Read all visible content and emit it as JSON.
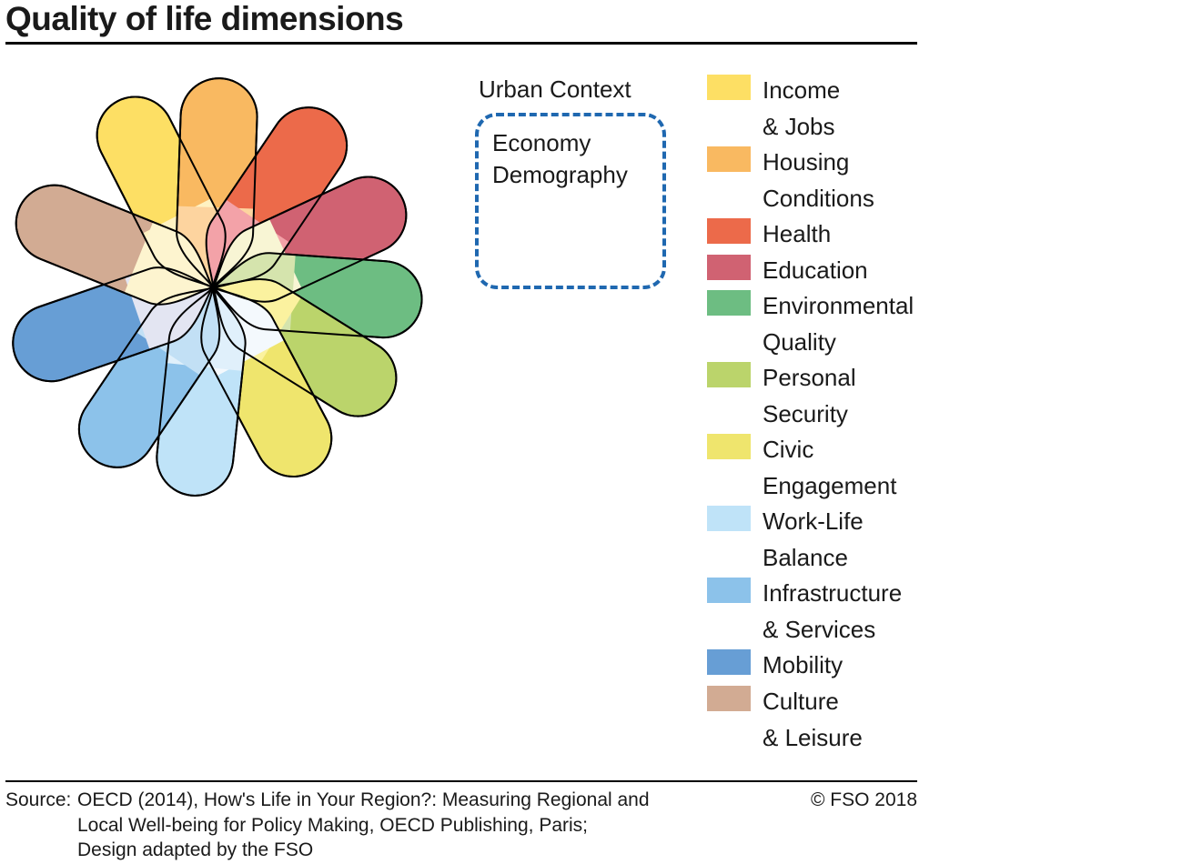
{
  "title": "Quality of life dimensions",
  "urban_context": {
    "label": "Urban Context",
    "items": [
      "Economy",
      "Demography"
    ],
    "border_color": "#1f68b0"
  },
  "dimensions": [
    {
      "name": "Income\n& Jobs",
      "color": "#fddf64"
    },
    {
      "name": "Housing\nConditions",
      "color": "#f9b961"
    },
    {
      "name": "Health",
      "color": "#ec6a4a"
    },
    {
      "name": "Education",
      "color": "#d06272"
    },
    {
      "name": "Environmental\nQuality",
      "color": "#6dbd82"
    },
    {
      "name": "Personal\nSecurity",
      "color": "#bbd46b"
    },
    {
      "name": "Civic\nEngagement",
      "color": "#efe56d"
    },
    {
      "name": "Work-Life\nBalance",
      "color": "#bfe3f8"
    },
    {
      "name": "Infrastructure\n& Services",
      "color": "#8cc2ea"
    },
    {
      "name": "Mobility",
      "color": "#679ed5"
    },
    {
      "name": "Culture\n& Leisure",
      "color": "#d2ab93"
    }
  ],
  "petal_inner_colors": [
    "#fff2c2",
    "#fdd49f",
    "#f3a2a8",
    "#f8f5d4",
    "#d5e4ad",
    "#fbf29f",
    "#f4f9fd",
    "#e0f0fb",
    "#c2e0f5",
    "#e3e5f2",
    "#fdf4cf"
  ],
  "footer": {
    "source_label": "Source:",
    "source_text": "OECD (2014), How's Life in Your Region?: Measuring Regional and\nLocal Well-being for Policy Making, OECD Publishing, Paris;\nDesign adapted by the FSO",
    "copyright": "© FSO 2018"
  }
}
